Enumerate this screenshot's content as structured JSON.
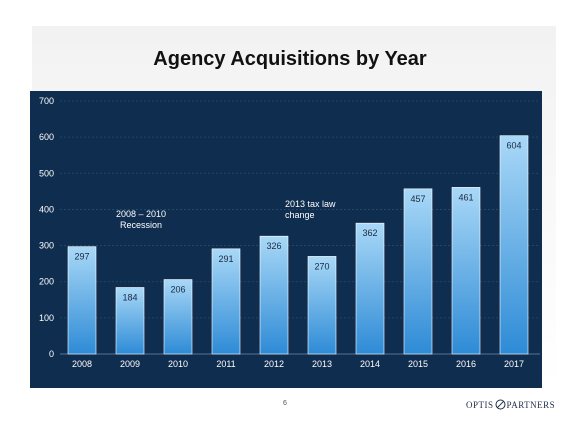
{
  "chart_data": {
    "type": "bar",
    "title": "Agency Acquisitions by Year",
    "categories": [
      "2008",
      "2009",
      "2010",
      "2011",
      "2012",
      "2013",
      "2014",
      "2015",
      "2016",
      "2017"
    ],
    "values": [
      297,
      184,
      206,
      291,
      326,
      270,
      362,
      457,
      461,
      604
    ],
    "ylim": [
      0,
      700
    ],
    "yticks": [
      0,
      100,
      200,
      300,
      400,
      500,
      600,
      700
    ],
    "grid": true,
    "xlabel": "",
    "ylabel": "",
    "annotations": [
      {
        "lines": [
          "2008 – 2010",
          "Recession"
        ]
      },
      {
        "lines": [
          "2013 tax law",
          "change"
        ]
      }
    ],
    "colors": {
      "plot_bg": "#0f2d4f",
      "bar_top": "#a9d8f7",
      "bar_bottom": "#2e8bd6",
      "label": "#1a2940",
      "tick": "#ffffff"
    }
  },
  "footer": {
    "page_number": "6",
    "logo_left": "OPTIS",
    "logo_right": "PARTNERS"
  }
}
